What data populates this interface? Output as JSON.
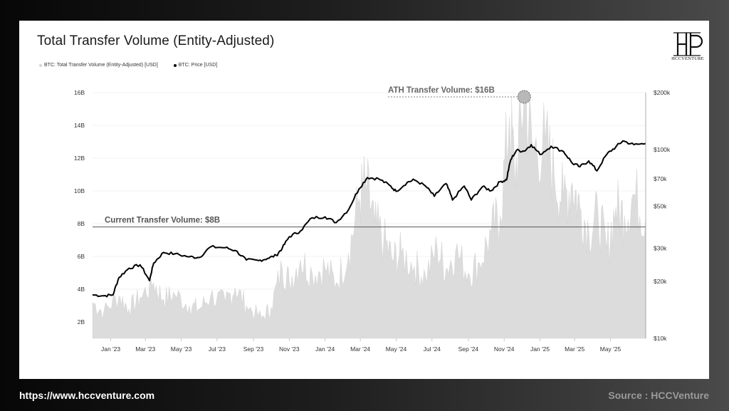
{
  "title": "Total Transfer Volume (Entity-Adjusted)",
  "legend": [
    {
      "label": "BTC: Total Transfer Volume (Entity-Adjusted) [USD]",
      "color": "#d4d4d4"
    },
    {
      "label": "BTC: Price [USD]",
      "color": "#000000"
    }
  ],
  "brand": {
    "logo_text": "HCCVENTURE",
    "logo_icon": "hcc-monogram-icon"
  },
  "footer": {
    "url": "https://www.hccventure.com",
    "source": "Source : HCCVenture"
  },
  "annotations": {
    "ath": "ATH Transfer Volume: $16B",
    "current": "Current Transfer Volume: $8B"
  },
  "chart_data": {
    "type": "area",
    "x_ticks": [
      "Jan '23",
      "Mar '23",
      "May '23",
      "Jul '23",
      "Sep '23",
      "Nov '23",
      "Jan '24",
      "Mar '24",
      "May '24",
      "Jul '24",
      "Sep '24",
      "Nov '24",
      "Jan '25",
      "Mar '25",
      "May '25"
    ],
    "x_range": [
      "2022-12-01",
      "2025-06-30"
    ],
    "y_left_ticks": [
      "2B",
      "4B",
      "6B",
      "8B",
      "10B",
      "12B",
      "14B",
      "16B"
    ],
    "y_left_range": [
      1,
      16
    ],
    "y_right_ticks": [
      "$10k",
      "$20k",
      "$30k",
      "$50k",
      "$70k",
      "$100k",
      "$200k"
    ],
    "y_right_range": [
      10000,
      200000
    ],
    "y_right_scale": "log",
    "reference_line": 7.8,
    "ath_value": 16,
    "ath_date": "2024-12-05",
    "series": [
      {
        "name": "BTC: Total Transfer Volume (Entity-Adjusted) [USD]",
        "axis": "left",
        "dates": [
          "2022-12-01",
          "2022-12-20",
          "2023-01-15",
          "2023-02-01",
          "2023-02-20",
          "2023-03-15",
          "2023-04-01",
          "2023-04-20",
          "2023-05-15",
          "2023-06-01",
          "2023-06-20",
          "2023-07-15",
          "2023-08-01",
          "2023-08-20",
          "2023-09-15",
          "2023-10-01",
          "2023-10-20",
          "2023-11-01",
          "2023-11-20",
          "2023-12-10",
          "2024-01-01",
          "2024-01-20",
          "2024-02-10",
          "2024-02-28",
          "2024-03-10",
          "2024-03-25",
          "2024-04-10",
          "2024-04-25",
          "2024-05-10",
          "2024-06-01",
          "2024-06-20",
          "2024-07-10",
          "2024-07-25",
          "2024-08-10",
          "2024-09-01",
          "2024-09-20",
          "2024-10-10",
          "2024-10-25",
          "2024-11-10",
          "2024-11-20",
          "2024-12-05",
          "2024-12-20",
          "2025-01-10",
          "2025-01-25",
          "2025-02-10",
          "2025-02-25",
          "2025-03-10",
          "2025-03-25",
          "2025-04-10",
          "2025-04-25",
          "2025-05-10",
          "2025-05-25",
          "2025-06-10",
          "2025-06-30"
        ],
        "values": [
          3.2,
          2.6,
          3.6,
          2.8,
          3.5,
          4.4,
          3.4,
          3.7,
          3.0,
          2.8,
          3.6,
          3.2,
          4.1,
          3.0,
          2.2,
          2.9,
          5.3,
          4.5,
          5.8,
          5.0,
          5.3,
          4.4,
          6.2,
          9.5,
          10.5,
          8.0,
          7.0,
          5.8,
          6.2,
          5.4,
          4.8,
          6.5,
          5.2,
          6.3,
          5.0,
          5.6,
          7.5,
          8.5,
          14.5,
          11.0,
          16.0,
          12.5,
          13.0,
          11.0,
          9.5,
          10.5,
          9.0,
          7.6,
          8.5,
          6.5,
          9.0,
          8.5,
          9.8,
          8.3
        ]
      },
      {
        "name": "BTC: Price [USD]",
        "axis": "right",
        "dates": [
          "2022-12-01",
          "2022-12-20",
          "2023-01-05",
          "2023-01-15",
          "2023-02-01",
          "2023-02-20",
          "2023-03-08",
          "2023-03-15",
          "2023-04-01",
          "2023-04-20",
          "2023-05-15",
          "2023-06-01",
          "2023-06-20",
          "2023-07-15",
          "2023-08-01",
          "2023-08-20",
          "2023-09-10",
          "2023-09-25",
          "2023-10-10",
          "2023-10-20",
          "2023-11-01",
          "2023-11-20",
          "2023-12-10",
          "2024-01-01",
          "2024-01-20",
          "2024-02-10",
          "2024-02-28",
          "2024-03-13",
          "2024-04-01",
          "2024-04-20",
          "2024-05-01",
          "2024-05-20",
          "2024-06-01",
          "2024-06-20",
          "2024-07-05",
          "2024-07-25",
          "2024-08-05",
          "2024-08-25",
          "2024-09-06",
          "2024-09-25",
          "2024-10-10",
          "2024-10-25",
          "2024-11-05",
          "2024-11-12",
          "2024-11-22",
          "2024-12-05",
          "2024-12-17",
          "2025-01-01",
          "2025-01-20",
          "2025-02-10",
          "2025-02-25",
          "2025-03-10",
          "2025-03-25",
          "2025-04-08",
          "2025-04-25",
          "2025-05-10",
          "2025-05-22",
          "2025-06-10",
          "2025-06-30"
        ],
        "values": [
          17000,
          16800,
          17000,
          21000,
          23500,
          24500,
          20200,
          25000,
          28500,
          28000,
          27000,
          26800,
          30500,
          30200,
          29200,
          26000,
          25800,
          26500,
          27500,
          30000,
          34500,
          37000,
          43500,
          44000,
          41000,
          48000,
          62000,
          71000,
          70000,
          64500,
          60000,
          67000,
          69000,
          64000,
          56500,
          66000,
          54000,
          64000,
          54000,
          63500,
          60500,
          67500,
          69000,
          88000,
          99000,
          98000,
          106000,
          94000,
          104000,
          97500,
          84500,
          81000,
          87000,
          77000,
          94500,
          103000,
          111000,
          106000,
          107500
        ]
      }
    ]
  }
}
